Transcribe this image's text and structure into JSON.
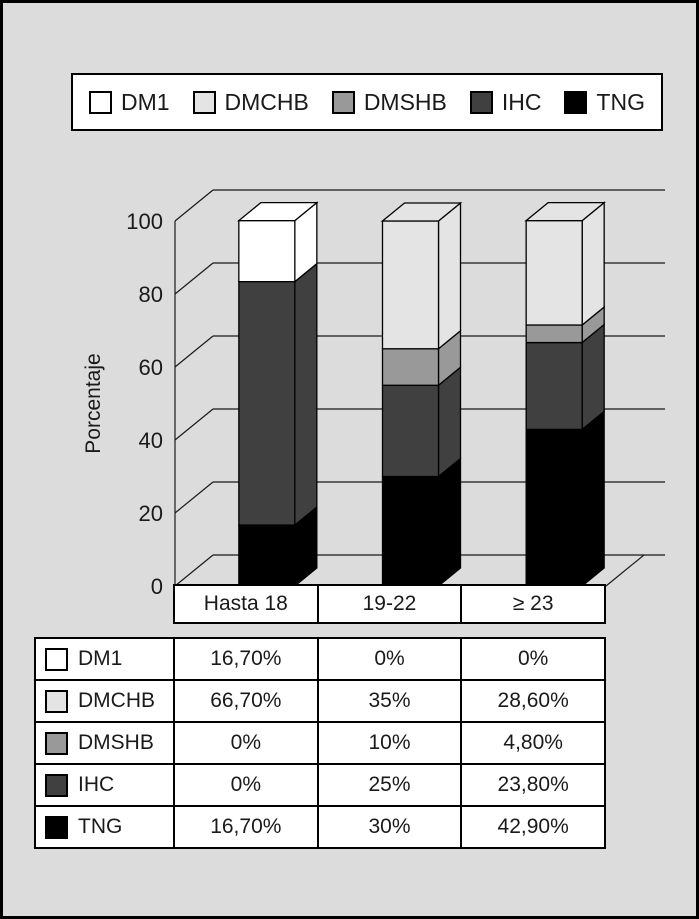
{
  "colors": {
    "background": "#dcdcdc",
    "axis_text": "#1a1a1a"
  },
  "legend": {
    "items": [
      {
        "label": "DM1",
        "color": "#ffffff"
      },
      {
        "label": "DMCHB",
        "color": "#e4e4e4"
      },
      {
        "label": "DMSHB",
        "color": "#999999"
      },
      {
        "label": "IHC",
        "color": "#404040"
      },
      {
        "label": "TNG",
        "color": "#000000"
      }
    ]
  },
  "chart_data": {
    "type": "bar",
    "subtype": "stacked-3d-column",
    "title": "",
    "xlabel": "",
    "ylabel": "Porcentaje",
    "ylim": [
      0,
      100
    ],
    "yticks": [
      0,
      20,
      40,
      60,
      80,
      100
    ],
    "grid": true,
    "legend_position": "top",
    "categories": [
      "Hasta 18",
      "19-22",
      "≥ 23"
    ],
    "series": [
      {
        "name": "TNG",
        "color": "#000000",
        "values": [
          16.7,
          30,
          42.9
        ]
      },
      {
        "name": "IHC",
        "color": "#404040",
        "values": [
          0,
          25,
          23.8
        ]
      },
      {
        "name": "DMSHB",
        "color": "#999999",
        "values": [
          0,
          10,
          4.8
        ]
      },
      {
        "name": "DMCHB",
        "color": "#e4e4e4",
        "values": [
          66.7,
          35,
          28.6
        ]
      },
      {
        "name": "DM1",
        "color": "#ffffff",
        "values": [
          16.7,
          0,
          0
        ]
      }
    ],
    "segment_color_overrides": [
      {
        "category": "Hasta 18",
        "series": "DMCHB",
        "color": "#404040"
      }
    ]
  },
  "table": {
    "column_headers": [
      "Hasta 18",
      "19-22",
      "≥ 23"
    ],
    "rows": [
      {
        "label": "DM1",
        "swatch_color": "#ffffff",
        "values": [
          "16,70%",
          "0%",
          "0%"
        ]
      },
      {
        "label": "DMCHB",
        "swatch_color": "#e4e4e4",
        "values": [
          "66,70%",
          "35%",
          "28,60%"
        ]
      },
      {
        "label": "DMSHB",
        "swatch_color": "#999999",
        "values": [
          "0%",
          "10%",
          "4,80%"
        ]
      },
      {
        "label": "IHC",
        "swatch_color": "#404040",
        "values": [
          "0%",
          "25%",
          "23,80%"
        ]
      },
      {
        "label": "TNG",
        "swatch_color": "#000000",
        "values": [
          "16,70%",
          "30%",
          "42,90%"
        ]
      }
    ]
  }
}
